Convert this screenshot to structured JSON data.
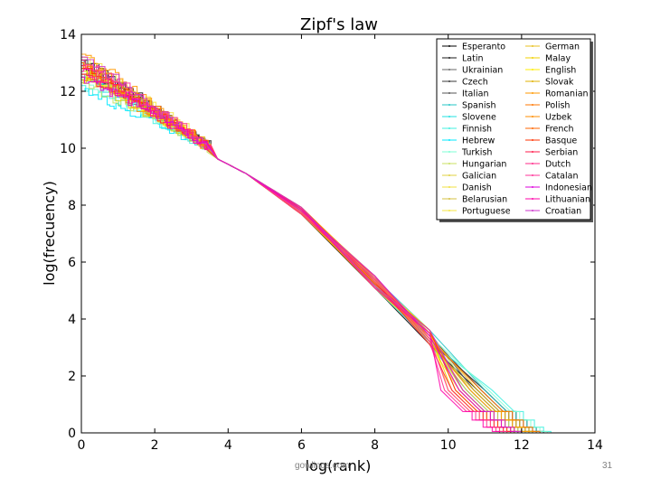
{
  "footer": {
    "source": "gowlings.com",
    "page": "31"
  },
  "chart_data": {
    "type": "line",
    "title": "Zipf's law",
    "xlabel": "log(rank)",
    "ylabel": "log(frecuency)",
    "xlim": [
      0,
      14
    ],
    "ylim": [
      0,
      14
    ],
    "xticks": [
      0,
      2,
      4,
      6,
      8,
      10,
      12,
      14
    ],
    "yticks": [
      0,
      2,
      4,
      6,
      8,
      10,
      12,
      14
    ],
    "grid": false,
    "legend_position": "top-right",
    "series": [
      {
        "name": "Esperanto",
        "color": "#000000",
        "start": 12.8,
        "end_x": 12.4
      },
      {
        "name": "Latin",
        "color": "#1a1a1a",
        "start": 13.1,
        "end_x": 12.6
      },
      {
        "name": "Ukrainian",
        "color": "#6a6a6a",
        "start": 12.6,
        "end_x": 12.2
      },
      {
        "name": "Czech",
        "color": "#3a3a3a",
        "start": 13.0,
        "end_x": 12.5
      },
      {
        "name": "Italian",
        "color": "#555555",
        "start": 12.9,
        "end_x": 12.3
      },
      {
        "name": "Spanish",
        "color": "#26c6c6",
        "start": 12.7,
        "end_x": 12.6
      },
      {
        "name": "Slovene",
        "color": "#22e0e0",
        "start": 12.5,
        "end_x": 12.1
      },
      {
        "name": "Finnish",
        "color": "#40f0e0",
        "start": 12.2,
        "end_x": 12.8
      },
      {
        "name": "Hebrew",
        "color": "#00e8ff",
        "start": 12.0,
        "end_x": 12.0
      },
      {
        "name": "Turkish",
        "color": "#7fffd4",
        "start": 12.4,
        "end_x": 12.7
      },
      {
        "name": "Hungarian",
        "color": "#c8e060",
        "start": 12.3,
        "end_x": 12.2
      },
      {
        "name": "Galician",
        "color": "#e0d040",
        "start": 12.8,
        "end_x": 11.8
      },
      {
        "name": "Danish",
        "color": "#f0e040",
        "start": 12.6,
        "end_x": 11.9
      },
      {
        "name": "Belarusian",
        "color": "#d4c040",
        "start": 12.9,
        "end_x": 12.1
      },
      {
        "name": "Portuguese",
        "color": "#f5e642",
        "start": 13.2,
        "end_x": 12.0
      },
      {
        "name": "German",
        "color": "#e8c020",
        "start": 13.0,
        "end_x": 12.4
      },
      {
        "name": "Malay",
        "color": "#f0d000",
        "start": 12.4,
        "end_x": 11.7
      },
      {
        "name": "English",
        "color": "#ffee00",
        "start": 12.7,
        "end_x": 11.6
      },
      {
        "name": "Slovak",
        "color": "#e0b000",
        "start": 12.6,
        "end_x": 12.3
      },
      {
        "name": "Romanian",
        "color": "#ff9900",
        "start": 13.3,
        "end_x": 12.2
      },
      {
        "name": "Polish",
        "color": "#ff7700",
        "start": 12.9,
        "end_x": 12.5
      },
      {
        "name": "Uzbek",
        "color": "#ff8c00",
        "start": 12.5,
        "end_x": 11.9
      },
      {
        "name": "French",
        "color": "#ff6600",
        "start": 13.0,
        "end_x": 12.0
      },
      {
        "name": "Basque",
        "color": "#ff3300",
        "start": 12.8,
        "end_x": 11.8
      },
      {
        "name": "Serbian",
        "color": "#ff1a4a",
        "start": 12.6,
        "end_x": 11.7
      },
      {
        "name": "Dutch",
        "color": "#ff2a8a",
        "start": 12.9,
        "end_x": 11.5
      },
      {
        "name": "Catalan",
        "color": "#ff3399",
        "start": 13.1,
        "end_x": 11.6
      },
      {
        "name": "Indonesian",
        "color": "#dd00dd",
        "start": 12.5,
        "end_x": 11.9
      },
      {
        "name": "Lithuanian",
        "color": "#ff00aa",
        "start": 12.7,
        "end_x": 11.4
      },
      {
        "name": "Croatian",
        "color": "#cc33cc",
        "start": 13.2,
        "end_x": 12.0
      }
    ]
  }
}
